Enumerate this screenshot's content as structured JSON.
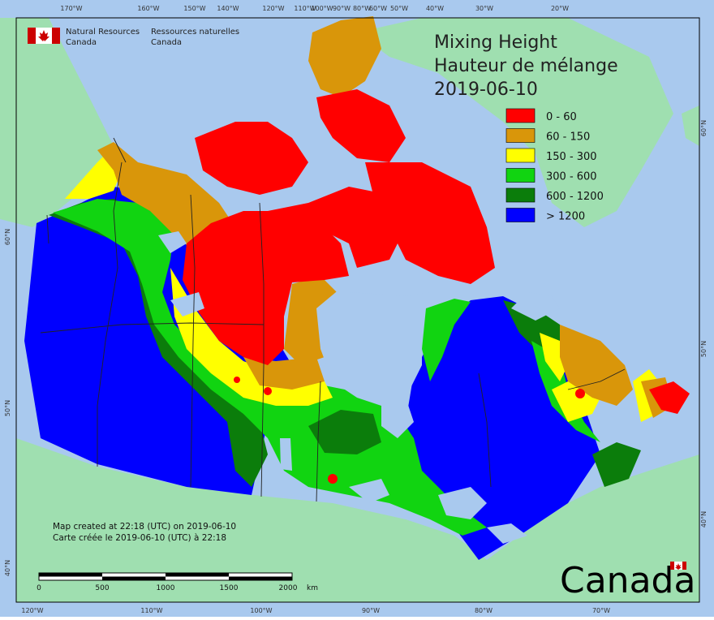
{
  "title": {
    "line1": "Mixing Height",
    "line2": "Hauteur de mélange",
    "date": "2019-06-10"
  },
  "agency": {
    "name_en_1": "Natural Resources",
    "name_en_2": "Canada",
    "name_fr_1": "Ressources naturelles",
    "name_fr_2": "Canada"
  },
  "legend": [
    {
      "label": "0 - 60",
      "color": "#ff0000"
    },
    {
      "label": "60 - 150",
      "color": "#d9960a"
    },
    {
      "label": "150 - 300",
      "color": "#ffff00"
    },
    {
      "label": "300 - 600",
      "color": "#11d411"
    },
    {
      "label": "600 - 1200",
      "color": "#0b7d0b"
    },
    {
      "label": "> 1200",
      "color": "#0000ff"
    }
  ],
  "credits": {
    "line_en": "Map created at 22:18 (UTC) on 2019-06-10",
    "line_fr": "Carte créée le 2019-06-10 (UTC) à 22:18"
  },
  "scalebar": {
    "labels": [
      "0",
      "500",
      "1000",
      "1500",
      "2000"
    ],
    "unit": "km"
  },
  "wordmark": "Canada",
  "graticule": {
    "top": [
      "170°W",
      "160°W",
      "150°W",
      "140°W",
      "120°W",
      "110°W",
      "100°W",
      "90°W",
      "80°W",
      "60°W",
      "50°W",
      "40°W",
      "30°W",
      "20°W"
    ],
    "bottom": [
      "120°W",
      "110°W",
      "100°W",
      "90°W",
      "80°W",
      "70°W"
    ],
    "left": [
      "60°N",
      "50°N",
      "40°N"
    ],
    "right": [
      "60°N",
      "50°N",
      "40°N"
    ]
  },
  "colors": {
    "ocean": "#a9c9ee",
    "land": "#9fdfb0",
    "lakes": "#a9c9ee",
    "borders": "#222222"
  }
}
